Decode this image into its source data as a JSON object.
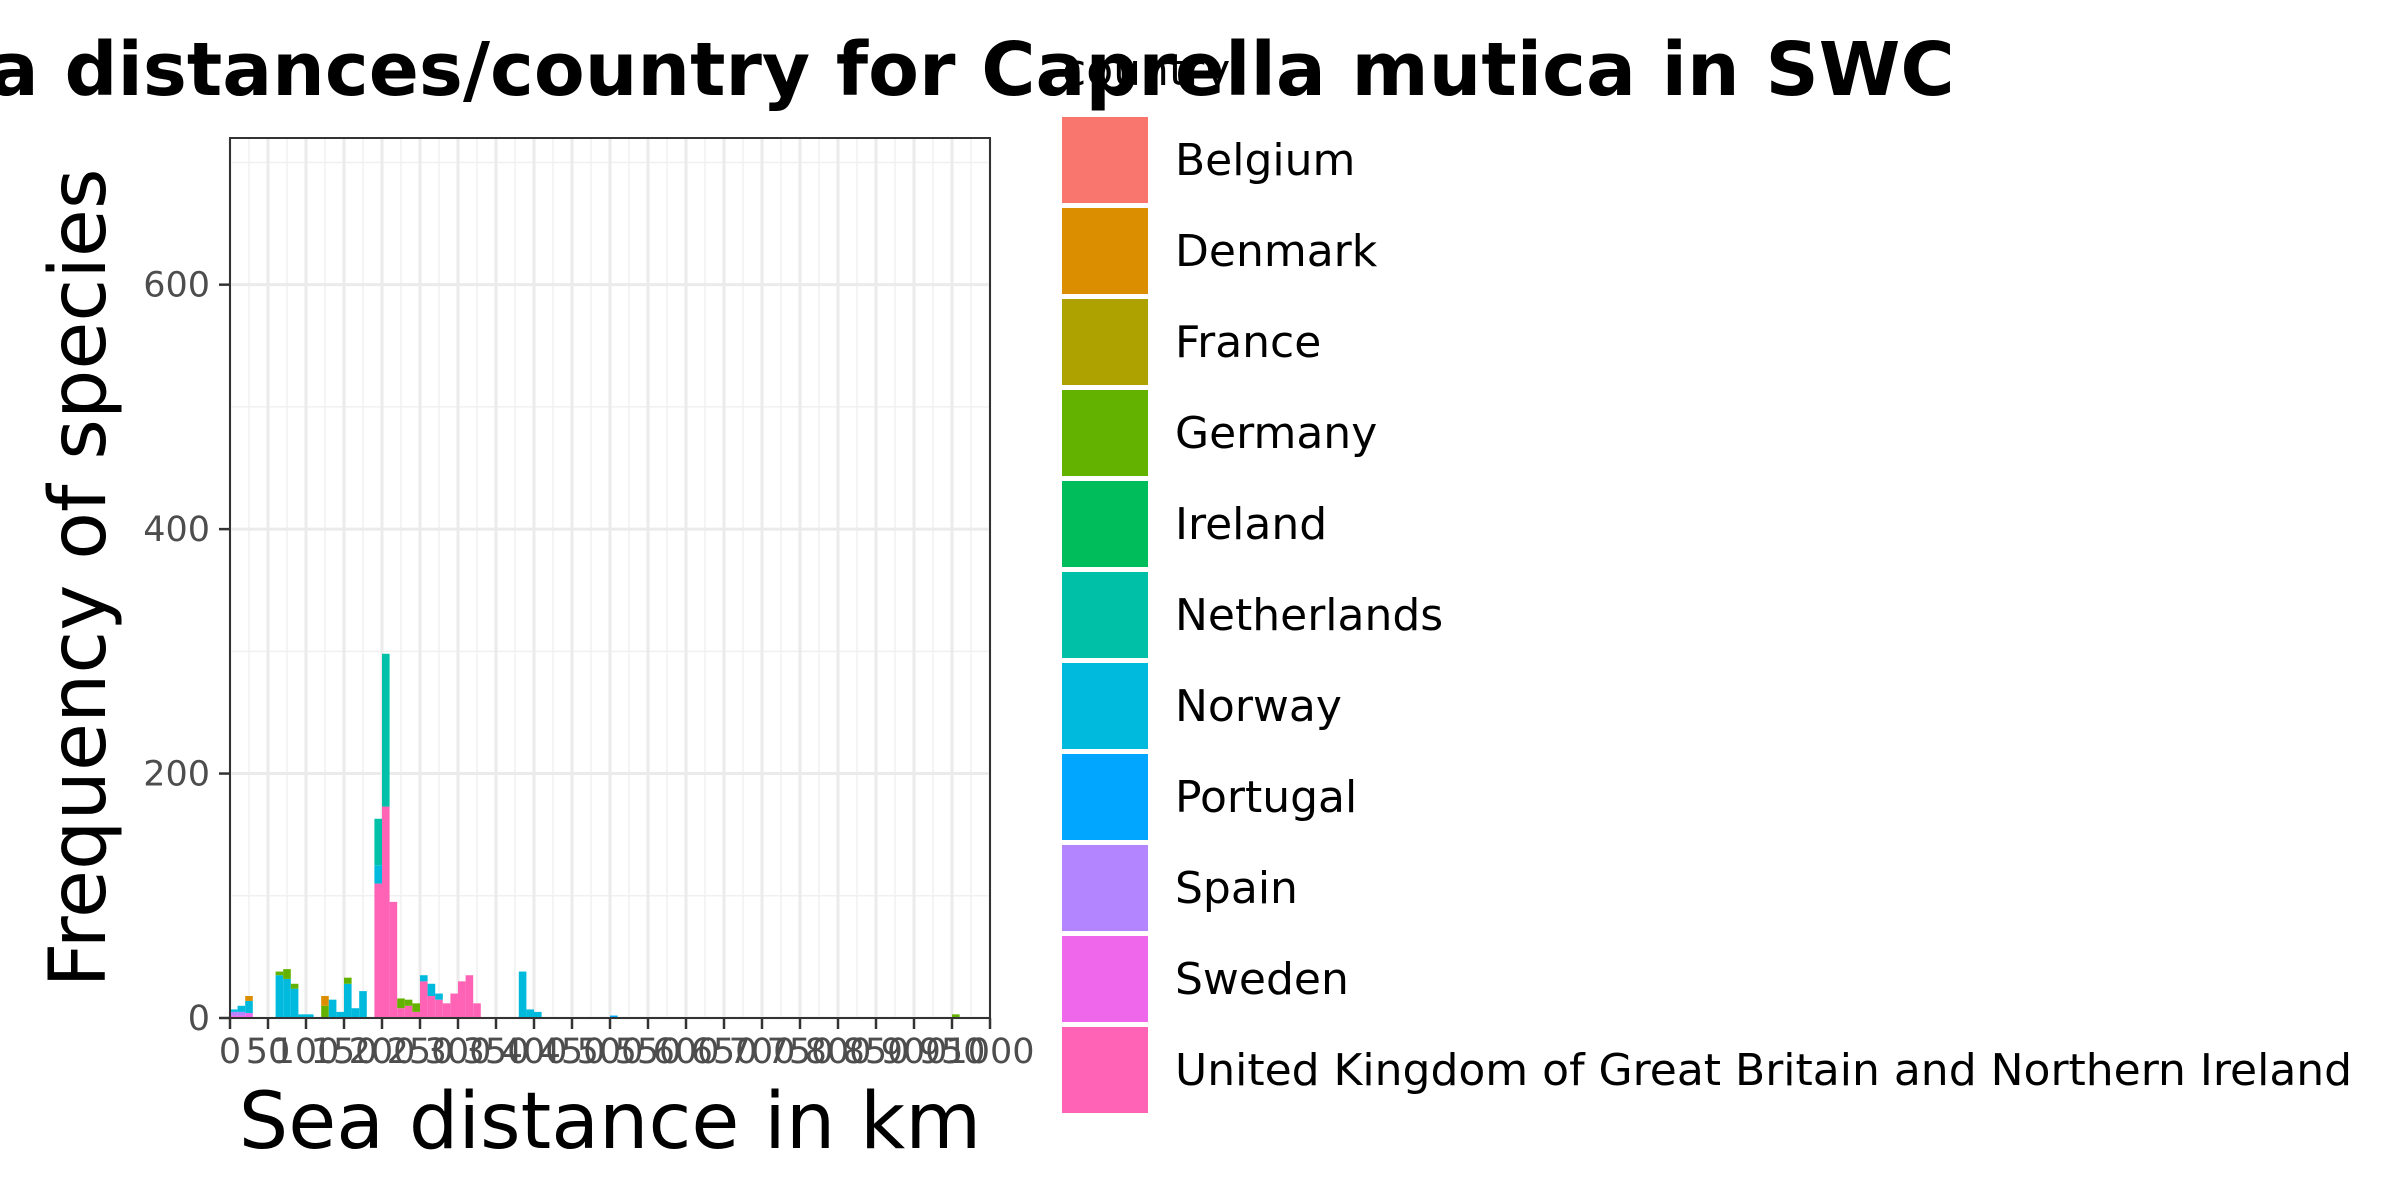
{
  "chart_data": {
    "type": "bar",
    "stacked": true,
    "title": "Sea distances/country for Caprella mutica in SWC",
    "xlabel": "Sea distance in km",
    "ylabel": "Frequency of species",
    "xlim": [
      0,
      1000
    ],
    "ylim": [
      0,
      720
    ],
    "bin_width": 10,
    "x_ticks": [
      0,
      50,
      100,
      150,
      200,
      250,
      300,
      350,
      400,
      450,
      500,
      550,
      600,
      650,
      700,
      750,
      800,
      850,
      900,
      950,
      1000
    ],
    "x_tick_labels": [
      "0",
      "50",
      "100",
      "150",
      "200",
      "250",
      "300",
      "350",
      "400",
      "450",
      "500",
      "550",
      "600",
      "650",
      "700",
      "750",
      "800",
      "850",
      "900",
      "950",
      "1000"
    ],
    "y_ticks": [
      0,
      200,
      400,
      600
    ],
    "y_tick_labels": [
      "0",
      "200",
      "400",
      "600"
    ],
    "grid": true,
    "legend_title": "country",
    "legend_position": "right",
    "colors": {
      "Belgium": "#F8766D",
      "Denmark": "#DB8E00",
      "France": "#AEA200",
      "Germany": "#64B200",
      "Ireland": "#00BD5C",
      "Netherlands": "#00C1A7",
      "Norway": "#00BADE",
      "Portugal": "#00A6FF",
      "Spain": "#B385FF",
      "Sweden": "#EF67EB",
      "United Kingdom of Great Britain and Northern Ireland": "#FF63B6"
    },
    "x": [
      5,
      15,
      25,
      35,
      55,
      65,
      75,
      85,
      95,
      105,
      115,
      125,
      135,
      145,
      155,
      165,
      175,
      185,
      195,
      205,
      215,
      225,
      235,
      245,
      255,
      265,
      275,
      285,
      295,
      305,
      315,
      325,
      335,
      345,
      355,
      365,
      375,
      385,
      395,
      405,
      415,
      425,
      435,
      445,
      455,
      465,
      475,
      485,
      495,
      505,
      515,
      525,
      535,
      545,
      555,
      565,
      575,
      585,
      595,
      605,
      615,
      625,
      635,
      645,
      655,
      665,
      675,
      685,
      695,
      705,
      715,
      725,
      735,
      745,
      755,
      765,
      775,
      785,
      795,
      805,
      815,
      825,
      835,
      845,
      855,
      865,
      875,
      885,
      895,
      905,
      915,
      925,
      935,
      945,
      955,
      965,
      975,
      985,
      995
    ],
    "series": [
      {
        "name": "Belgium",
        "values": [
          0,
          0,
          0,
          0,
          0,
          0,
          0,
          0,
          0,
          0,
          0,
          0,
          0,
          0,
          0,
          0,
          0,
          0,
          0,
          0,
          0,
          0,
          0,
          0,
          0,
          0,
          0,
          0,
          0,
          0,
          0,
          0,
          0,
          0,
          0,
          0,
          0,
          0,
          0,
          0,
          0,
          0,
          0,
          0,
          0,
          0,
          0,
          0,
          0,
          0,
          0,
          0,
          0,
          0,
          0,
          0,
          0,
          0,
          0,
          0,
          0,
          0,
          0,
          0,
          0,
          0,
          0,
          0,
          0,
          0,
          0,
          0,
          0,
          0,
          0,
          0,
          0,
          0,
          0,
          0,
          0,
          0,
          0,
          0,
          0,
          0,
          0,
          0,
          0,
          0,
          0,
          0,
          0,
          0,
          0,
          0,
          0,
          0,
          0
        ]
      },
      {
        "name": "Denmark",
        "values": [
          0,
          0,
          4,
          0,
          0,
          0,
          0,
          0,
          0,
          0,
          0,
          8,
          0,
          0,
          0,
          0,
          0,
          0,
          0,
          0,
          0,
          0,
          0,
          0,
          0,
          0,
          0,
          0,
          0,
          0,
          0,
          0,
          0,
          0,
          0,
          0,
          0,
          0,
          0,
          0,
          0,
          0,
          0,
          0,
          0,
          0,
          0,
          0,
          0,
          0,
          0,
          0,
          0,
          0,
          0,
          0,
          0,
          0,
          0,
          0,
          0,
          0,
          0,
          0,
          0,
          0,
          0,
          0,
          0,
          0,
          0,
          0,
          0,
          0,
          0,
          0,
          0,
          0,
          0,
          0,
          0,
          0,
          0,
          0,
          0,
          0,
          0,
          0,
          0,
          0,
          0,
          0,
          0,
          0,
          0,
          0,
          0,
          0,
          0
        ]
      },
      {
        "name": "France",
        "values": [
          0,
          0,
          0,
          0,
          0,
          0,
          0,
          0,
          0,
          0,
          0,
          0,
          0,
          0,
          0,
          0,
          0,
          0,
          0,
          0,
          0,
          0,
          0,
          0,
          0,
          0,
          0,
          0,
          0,
          0,
          0,
          0,
          0,
          0,
          0,
          0,
          0,
          0,
          0,
          0,
          0,
          0,
          0,
          0,
          0,
          0,
          0,
          0,
          0,
          0,
          0,
          0,
          0,
          0,
          0,
          0,
          0,
          0,
          0,
          0,
          0,
          0,
          0,
          0,
          0,
          0,
          0,
          0,
          0,
          0,
          0,
          0,
          0,
          0,
          0,
          0,
          0,
          0,
          0,
          0,
          0,
          0,
          0,
          0,
          0,
          0,
          0,
          0,
          0,
          0,
          0,
          0,
          0,
          0,
          0,
          0,
          0,
          0,
          0
        ]
      },
      {
        "name": "Germany",
        "values": [
          0,
          0,
          0,
          0,
          0,
          3,
          8,
          4,
          0,
          0,
          0,
          10,
          0,
          0,
          5,
          0,
          0,
          0,
          0,
          0,
          0,
          8,
          5,
          7,
          0,
          0,
          0,
          0,
          0,
          0,
          0,
          0,
          0,
          0,
          0,
          0,
          0,
          0,
          0,
          0,
          0,
          0,
          0,
          0,
          0,
          0,
          0,
          0,
          0,
          0,
          0,
          0,
          0,
          0,
          0,
          0,
          0,
          0,
          0,
          0,
          0,
          0,
          0,
          0,
          0,
          0,
          0,
          0,
          0,
          0,
          0,
          0,
          0,
          0,
          0,
          0,
          0,
          0,
          0,
          0,
          0,
          0,
          0,
          0,
          0,
          0,
          0,
          0,
          0,
          0,
          0,
          0,
          0,
          0,
          3,
          0,
          0,
          0,
          0
        ]
      },
      {
        "name": "Ireland",
        "values": [
          0,
          0,
          0,
          0,
          0,
          0,
          0,
          0,
          0,
          0,
          0,
          0,
          0,
          0,
          0,
          0,
          0,
          0,
          0,
          0,
          0,
          0,
          0,
          0,
          0,
          0,
          0,
          0,
          0,
          0,
          0,
          0,
          0,
          0,
          0,
          0,
          0,
          0,
          0,
          0,
          0,
          0,
          0,
          0,
          0,
          0,
          0,
          0,
          0,
          0,
          0,
          0,
          0,
          0,
          0,
          0,
          0,
          0,
          0,
          0,
          0,
          0,
          0,
          0,
          0,
          0,
          0,
          0,
          0,
          0,
          0,
          0,
          0,
          0,
          0,
          0,
          0,
          0,
          0,
          0,
          0,
          0,
          0,
          0,
          0,
          0,
          0,
          0,
          0,
          0,
          0,
          0,
          0,
          0,
          0,
          0,
          0,
          0,
          0
        ]
      },
      {
        "name": "Netherlands",
        "values": [
          0,
          0,
          0,
          0,
          0,
          0,
          0,
          0,
          0,
          0,
          0,
          0,
          0,
          0,
          0,
          0,
          0,
          0,
          38,
          125,
          0,
          0,
          0,
          0,
          0,
          0,
          0,
          0,
          0,
          0,
          0,
          0,
          0,
          0,
          0,
          0,
          0,
          0,
          0,
          0,
          0,
          0,
          0,
          0,
          0,
          0,
          0,
          0,
          0,
          0,
          0,
          0,
          0,
          0,
          0,
          0,
          0,
          0,
          0,
          0,
          0,
          0,
          0,
          0,
          0,
          0,
          0,
          0,
          0,
          0,
          0,
          0,
          0,
          0,
          0,
          0,
          0,
          0,
          0,
          0,
          0,
          0,
          0,
          0,
          0,
          0,
          0,
          0,
          0,
          0,
          0,
          0,
          0,
          0,
          0,
          0,
          0,
          0,
          0
        ]
      },
      {
        "name": "Norway",
        "values": [
          2,
          5,
          10,
          0,
          0,
          35,
          32,
          24,
          3,
          3,
          0,
          0,
          15,
          5,
          28,
          8,
          22,
          0,
          15,
          0,
          0,
          0,
          0,
          0,
          5,
          10,
          5,
          0,
          0,
          0,
          0,
          0,
          0,
          0,
          0,
          0,
          0,
          38,
          7,
          5,
          0,
          0,
          0,
          0,
          0,
          0,
          0,
          0,
          0,
          0,
          0,
          0,
          0,
          0,
          0,
          0,
          0,
          0,
          0,
          0,
          0,
          0,
          0,
          0,
          0,
          0,
          0,
          0,
          0,
          0,
          0,
          0,
          0,
          0,
          0,
          0,
          0,
          0,
          0,
          0,
          0,
          0,
          0,
          0,
          0,
          0,
          0,
          0,
          0,
          0,
          0,
          0,
          0,
          0,
          0,
          0,
          0,
          0,
          0
        ]
      },
      {
        "name": "Portugal",
        "values": [
          0,
          0,
          0,
          0,
          0,
          0,
          0,
          0,
          0,
          0,
          0,
          0,
          0,
          0,
          0,
          0,
          0,
          0,
          0,
          0,
          0,
          0,
          0,
          0,
          0,
          0,
          0,
          0,
          0,
          0,
          0,
          0,
          0,
          0,
          0,
          0,
          0,
          0,
          0,
          0,
          0,
          0,
          0,
          0,
          0,
          0,
          0,
          0,
          0,
          2,
          0,
          0,
          0,
          0,
          0,
          0,
          0,
          0,
          0,
          0,
          0,
          0,
          0,
          0,
          0,
          0,
          0,
          0,
          0,
          0,
          0,
          0,
          0,
          0,
          0,
          0,
          0,
          0,
          0,
          0,
          0,
          0,
          0,
          0,
          0,
          0,
          0,
          0,
          0,
          0,
          0,
          0,
          0,
          0,
          0,
          0,
          0,
          0,
          0
        ]
      },
      {
        "name": "Spain",
        "values": [
          3,
          3,
          0,
          0,
          0,
          0,
          0,
          0,
          0,
          0,
          0,
          0,
          0,
          0,
          0,
          0,
          0,
          0,
          0,
          0,
          0,
          0,
          0,
          0,
          0,
          0,
          0,
          0,
          0,
          0,
          0,
          0,
          0,
          0,
          0,
          0,
          0,
          0,
          0,
          0,
          0,
          0,
          0,
          0,
          0,
          0,
          0,
          0,
          0,
          0,
          0,
          0,
          0,
          0,
          0,
          0,
          0,
          0,
          0,
          0,
          0,
          0,
          0,
          0,
          0,
          0,
          0,
          0,
          0,
          0,
          0,
          0,
          0,
          0,
          0,
          0,
          0,
          0,
          0,
          0,
          0,
          0,
          0,
          0,
          0,
          0,
          0,
          0,
          0,
          0,
          0,
          0,
          0,
          0,
          0,
          0,
          0,
          0,
          0
        ]
      },
      {
        "name": "Sweden",
        "values": [
          2,
          2,
          4,
          0,
          0,
          0,
          0,
          0,
          0,
          0,
          0,
          0,
          0,
          0,
          0,
          0,
          0,
          0,
          0,
          0,
          0,
          0,
          0,
          0,
          0,
          0,
          0,
          0,
          0,
          0,
          0,
          0,
          0,
          0,
          0,
          0,
          0,
          0,
          0,
          0,
          0,
          0,
          0,
          0,
          0,
          0,
          0,
          0,
          0,
          0,
          0,
          0,
          0,
          0,
          0,
          0,
          0,
          0,
          0,
          0,
          0,
          0,
          0,
          0,
          0,
          0,
          0,
          0,
          0,
          0,
          0,
          0,
          0,
          0,
          0,
          0,
          0,
          0,
          0,
          0,
          0,
          0,
          0,
          0,
          0,
          0,
          0,
          0,
          0,
          0,
          0,
          0,
          0,
          0,
          0,
          0,
          0,
          0,
          0
        ]
      },
      {
        "name": "United Kingdom of Great Britain and Northern Ireland",
        "values": [
          0,
          0,
          0,
          0,
          0,
          0,
          0,
          0,
          0,
          0,
          0,
          0,
          0,
          0,
          0,
          0,
          0,
          0,
          110,
          173,
          95,
          8,
          10,
          5,
          30,
          18,
          15,
          12,
          20,
          30,
          35,
          12,
          0,
          0,
          0,
          0,
          0,
          0,
          0,
          0,
          0,
          0,
          0,
          0,
          0,
          0,
          0,
          0,
          0,
          0,
          0,
          0,
          0,
          0,
          0,
          0,
          0,
          0,
          0,
          0,
          0,
          0,
          0,
          0,
          0,
          0,
          0,
          0,
          0,
          0,
          0,
          0,
          0,
          0,
          0,
          0,
          0,
          0,
          0,
          0,
          0,
          0,
          0,
          0,
          0,
          0,
          0,
          0,
          0,
          0,
          0,
          0,
          0,
          0,
          0,
          0,
          0,
          0,
          0
        ]
      }
    ]
  }
}
